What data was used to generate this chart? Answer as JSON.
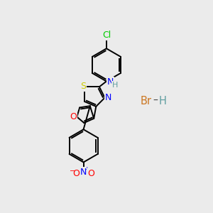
{
  "bg_color": "#ebebeb",
  "bond_color": "#000000",
  "atom_colors": {
    "S": "#cccc00",
    "N": "#0000ff",
    "O": "#ff0000",
    "Cl": "#00cc00",
    "Br": "#cc7722",
    "H_color": "#5f9ea0",
    "C": "#000000"
  },
  "figsize": [
    3.0,
    3.0
  ],
  "dpi": 100
}
